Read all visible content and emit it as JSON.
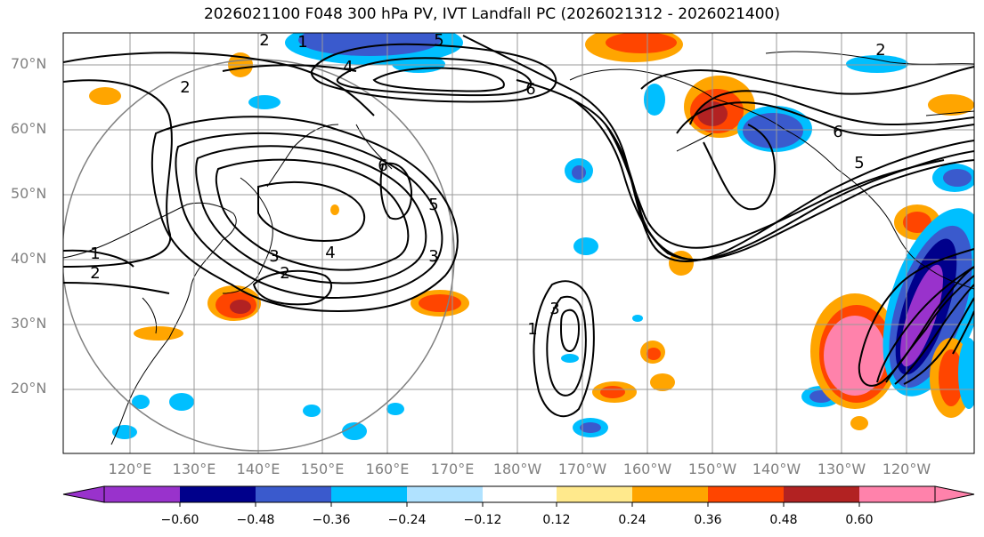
{
  "title": "2026021100 F048 300 hPa PV, IVT Landfall PC (2026021312 - 2026021400)",
  "lat_labels": [
    "70°N",
    "60°N",
    "50°N",
    "40°N",
    "30°N",
    "20°N"
  ],
  "lon_labels": [
    "120°E",
    "130°E",
    "140°E",
    "150°E",
    "160°E",
    "170°E",
    "180°W",
    "170°W",
    "160°W",
    "150°W",
    "140°W",
    "130°W",
    "120°W"
  ],
  "colorbar": {
    "ticks": [
      "−0.60",
      "−0.48",
      "−0.36",
      "−0.24",
      "−0.12",
      "0.12",
      "0.24",
      "0.36",
      "0.48",
      "0.60"
    ],
    "colors": [
      "#9932cc",
      "#00008b",
      "#3a5acd",
      "#00bfff",
      "#b0e2ff",
      "#ffffff",
      "#ffe98c",
      "#ffa500",
      "#ff4500",
      "#b22222",
      "#ff82ab"
    ]
  },
  "contour_labels": [
    "2",
    "1",
    "2",
    "3",
    "4",
    "5",
    "6",
    "2",
    "3",
    "5",
    "6",
    "1",
    "3",
    "2",
    "6",
    "5",
    "4",
    "1",
    "2"
  ],
  "colors": {
    "grid": "#999999",
    "contour": "#000000",
    "coast": "#000000",
    "circle": "#808080"
  }
}
